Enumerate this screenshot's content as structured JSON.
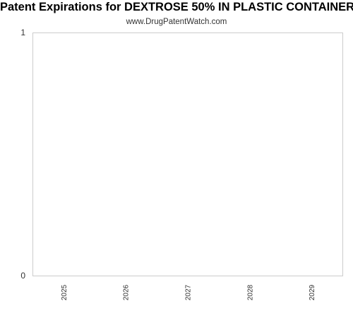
{
  "chart_data": {
    "type": "bar",
    "title": "Patent Expirations for DEXTROSE 50% IN PLASTIC CONTAINER",
    "subtitle": "www.DrugPatentWatch.com",
    "categories": [
      "2025",
      "2026",
      "2027",
      "2028",
      "2029"
    ],
    "values": [
      0,
      0,
      0,
      0,
      0
    ],
    "xlabel": "",
    "ylabel": "",
    "ylim": [
      0,
      1
    ],
    "yticks": [
      "0",
      "1"
    ],
    "grid": false,
    "legend": "none",
    "colors": {
      "axis": "#cccccc",
      "text": "#333333",
      "bar": "#4572a7"
    }
  }
}
